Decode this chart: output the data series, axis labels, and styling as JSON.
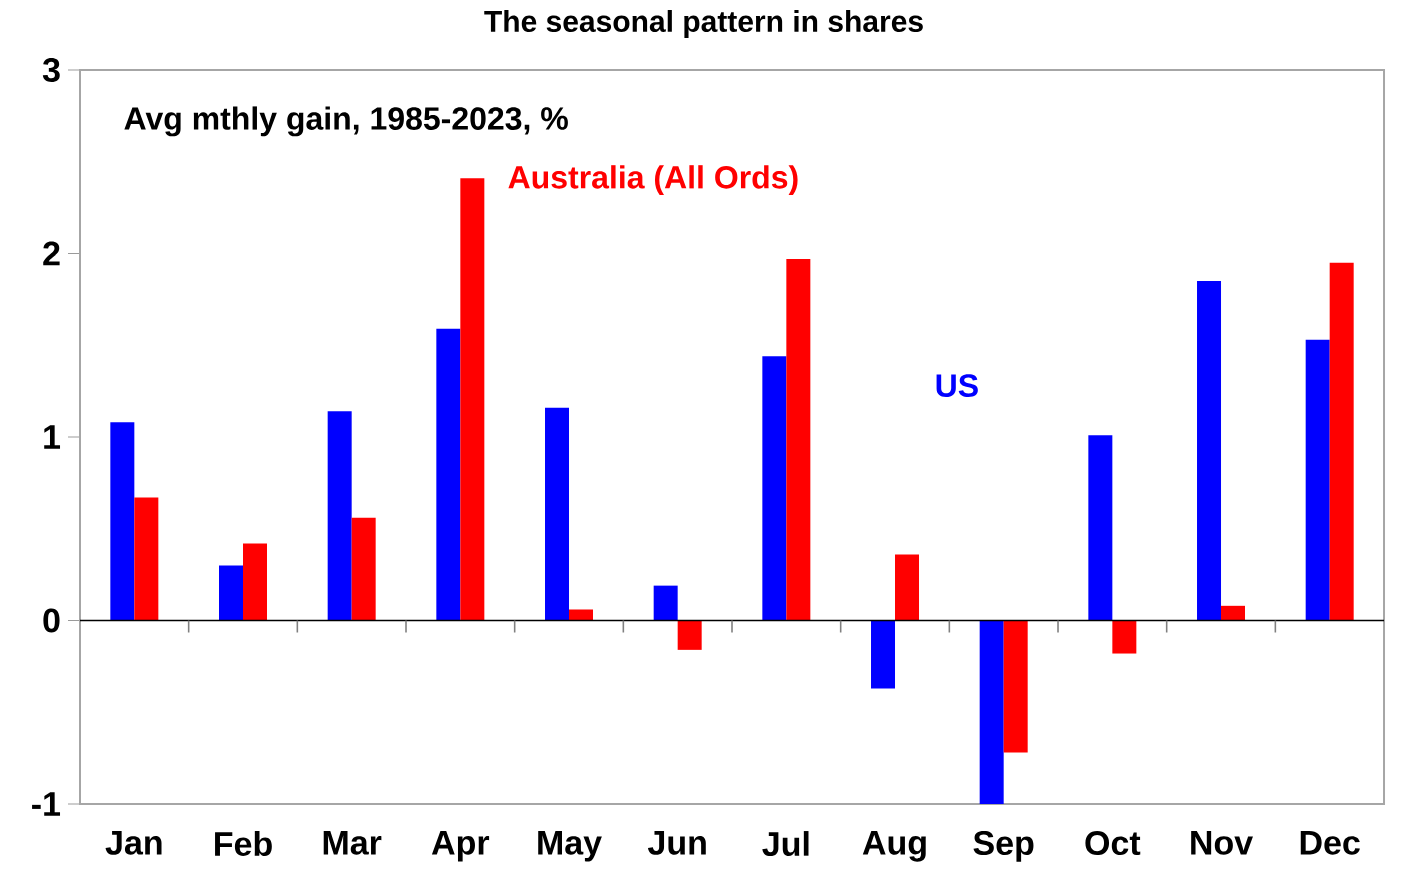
{
  "chart_data": {
    "type": "bar",
    "title": "The seasonal pattern in shares",
    "subtitle": "Avg mthly gain, 1985-2023, %",
    "categories": [
      "Jan",
      "Feb",
      "Mar",
      "Apr",
      "May",
      "Jun",
      "Jul",
      "Aug",
      "Sep",
      "Oct",
      "Nov",
      "Dec"
    ],
    "series": [
      {
        "name": "US",
        "color": "#0000ff",
        "values": [
          1.08,
          0.3,
          1.14,
          1.59,
          1.16,
          0.19,
          1.44,
          -0.37,
          -1.0,
          1.01,
          1.85,
          1.53
        ]
      },
      {
        "name": "Australia (All Ords)",
        "color": "#ff0000",
        "values": [
          0.67,
          0.42,
          0.56,
          2.41,
          0.06,
          -0.16,
          1.97,
          0.36,
          -0.72,
          -0.18,
          0.08,
          1.95
        ]
      }
    ],
    "ylim": [
      -1,
      3
    ],
    "yticks": [
      -1,
      0,
      1,
      2,
      3
    ],
    "legend": false
  }
}
